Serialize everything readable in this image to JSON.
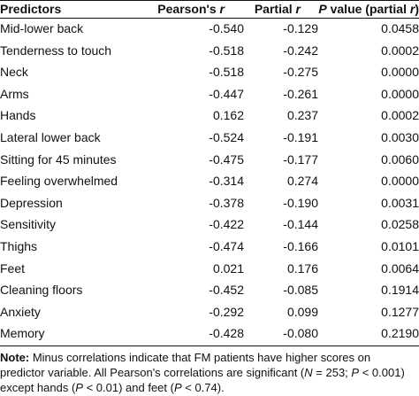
{
  "table": {
    "headers": {
      "predictors": "Predictors",
      "pearson_main": "Pearson's",
      "pearson_var": "r",
      "partial_main": "Partial",
      "partial_var": "r",
      "pvalue_var": "P",
      "pvalue_main": "value (partial",
      "pvalue_tail_var": "r",
      "pvalue_close": ")"
    },
    "rows": [
      {
        "predictor": "Mid-lower back",
        "pearson": "-0.540",
        "partial": "-0.129",
        "p_value": "0.0458"
      },
      {
        "predictor": "Tenderness to touch",
        "pearson": "-0.518",
        "partial": "-0.242",
        "p_value": "0.0002"
      },
      {
        "predictor": "Neck",
        "pearson": "-0.518",
        "partial": "-0.275",
        "p_value": "0.0000"
      },
      {
        "predictor": "Arms",
        "pearson": "-0.447",
        "partial": "-0.261",
        "p_value": "0.0000"
      },
      {
        "predictor": "Hands",
        "pearson": "0.162",
        "partial": "0.237",
        "p_value": "0.0002"
      },
      {
        "predictor": "Lateral lower back",
        "pearson": "-0.524",
        "partial": "-0.191",
        "p_value": "0.0030"
      },
      {
        "predictor": "Sitting for 45 minutes",
        "pearson": "-0.475",
        "partial": "-0.177",
        "p_value": "0.0060"
      },
      {
        "predictor": "Feeling overwhelmed",
        "pearson": "-0.314",
        "partial": "0.274",
        "p_value": "0.0000"
      },
      {
        "predictor": "Depression",
        "pearson": "-0.378",
        "partial": "-0.190",
        "p_value": "0.0031"
      },
      {
        "predictor": "Sensitivity",
        "pearson": "-0.422",
        "partial": "-0.144",
        "p_value": "0.0258"
      },
      {
        "predictor": "Thighs",
        "pearson": "-0.474",
        "partial": "-0.166",
        "p_value": "0.0101"
      },
      {
        "predictor": "Feet",
        "pearson": "0.021",
        "partial": "0.176",
        "p_value": "0.0064"
      },
      {
        "predictor": "Cleaning floors",
        "pearson": "-0.452",
        "partial": "-0.085",
        "p_value": "0.1914"
      },
      {
        "predictor": "Anxiety",
        "pearson": "-0.292",
        "partial": "0.099",
        "p_value": "0.1277"
      },
      {
        "predictor": "Memory",
        "pearson": "-0.428",
        "partial": "-0.080",
        "p_value": "0.2190"
      }
    ]
  },
  "note": {
    "label": "Note:",
    "l1": "Minus correlations indicate that FM patients have higher scores on",
    "l2a": "predictor variable. All Pearson's correlations are significant (",
    "l2_n_var": "N",
    "l2b": "= 253;",
    "l2_p_var": "P",
    "l2c": "< 0.001)",
    "l3a": "except hands (",
    "l3_p1_var": "P",
    "l3b": "< 0.01) and feet (",
    "l3_p2_var": "P",
    "l3c": "< 0.74)."
  }
}
